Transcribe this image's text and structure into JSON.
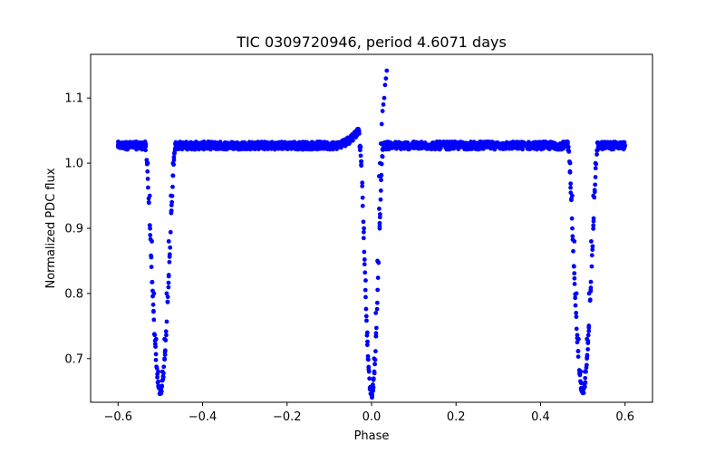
{
  "colors": {
    "background": "#ffffff",
    "axes": "#000000",
    "series": "#0000ff"
  },
  "chart_data": {
    "type": "scatter",
    "title": "TIC 0309720946, period 4.6071 days",
    "xlabel": "Phase",
    "ylabel": "Normalized PDC flux",
    "xlim": [
      -0.665,
      0.665
    ],
    "ylim": [
      0.633,
      1.167
    ],
    "grid": false,
    "legend": "none",
    "xticks": [
      -0.6,
      -0.4,
      -0.2,
      0.0,
      0.2,
      0.4,
      0.6
    ],
    "xtick_labels": [
      "−0.6",
      "−0.4",
      "−0.2",
      "0.0",
      "0.2",
      "0.4",
      "0.6"
    ],
    "yticks": [
      0.7,
      0.8,
      0.9,
      1.0,
      1.1
    ],
    "ytick_labels": [
      "0.7",
      "0.8",
      "0.9",
      "1.0",
      "1.1"
    ],
    "series": [
      {
        "color": "#0000ff",
        "marker": "circle",
        "baseline_flux": 1.027,
        "baseline_scatter": 0.006,
        "eclipses": [
          {
            "center_phase": -0.5,
            "min_flux": 0.65,
            "half_width": 0.035
          },
          {
            "center_phase": 0.0,
            "min_flux": 0.645,
            "half_width": 0.027
          },
          {
            "center_phase": 0.5,
            "min_flux": 0.65,
            "half_width": 0.035
          }
        ],
        "points": [
          [
            -0.6,
            1.027
          ],
          [
            -0.55,
            1.03
          ],
          [
            -0.54,
            1.03
          ],
          [
            -0.535,
            1.02
          ],
          [
            -0.53,
            1.0
          ],
          [
            -0.525,
            0.95
          ],
          [
            -0.52,
            0.88
          ],
          [
            -0.515,
            0.8
          ],
          [
            -0.51,
            0.73
          ],
          [
            -0.505,
            0.68
          ],
          [
            -0.5,
            0.65
          ],
          [
            -0.495,
            0.68
          ],
          [
            -0.49,
            0.73
          ],
          [
            -0.485,
            0.8
          ],
          [
            -0.48,
            0.88
          ],
          [
            -0.475,
            0.95
          ],
          [
            -0.47,
            1.0
          ],
          [
            -0.465,
            1.02
          ],
          [
            -0.46,
            1.03
          ],
          [
            -0.4,
            1.027
          ],
          [
            -0.3,
            1.027
          ],
          [
            -0.2,
            1.027
          ],
          [
            -0.1,
            1.027
          ],
          [
            -0.08,
            1.03
          ],
          [
            -0.06,
            1.035
          ],
          [
            -0.045,
            1.04
          ],
          [
            -0.035,
            1.045
          ],
          [
            -0.03,
            1.05
          ],
          [
            -0.027,
            1.02
          ],
          [
            -0.022,
            0.97
          ],
          [
            -0.018,
            0.9
          ],
          [
            -0.014,
            0.82
          ],
          [
            -0.01,
            0.74
          ],
          [
            -0.006,
            0.68
          ],
          [
            -0.003,
            0.655
          ],
          [
            0.0,
            0.645
          ],
          [
            0.003,
            0.66
          ],
          [
            0.006,
            0.7
          ],
          [
            0.01,
            0.77
          ],
          [
            0.014,
            0.85
          ],
          [
            0.018,
            0.93
          ],
          [
            0.022,
            0.98
          ],
          [
            0.026,
            1.01
          ],
          [
            0.03,
            1.027
          ],
          [
            0.1,
            1.027
          ],
          [
            0.2,
            1.027
          ],
          [
            0.3,
            1.027
          ],
          [
            0.4,
            1.027
          ],
          [
            0.46,
            1.03
          ],
          [
            0.465,
            1.02
          ],
          [
            0.47,
            1.0
          ],
          [
            0.475,
            0.95
          ],
          [
            0.48,
            0.88
          ],
          [
            0.485,
            0.8
          ],
          [
            0.49,
            0.73
          ],
          [
            0.495,
            0.68
          ],
          [
            0.5,
            0.65
          ],
          [
            0.505,
            0.68
          ],
          [
            0.51,
            0.73
          ],
          [
            0.515,
            0.8
          ],
          [
            0.52,
            0.88
          ],
          [
            0.525,
            0.95
          ],
          [
            0.53,
            1.0
          ],
          [
            0.535,
            1.02
          ],
          [
            0.54,
            1.03
          ],
          [
            0.6,
            1.027
          ]
        ],
        "outliers": [
          [
            0.018,
            0.98
          ],
          [
            0.02,
            1.0
          ],
          [
            0.022,
            1.03
          ],
          [
            0.024,
            1.06
          ],
          [
            0.026,
            1.08
          ],
          [
            0.028,
            1.09
          ],
          [
            0.03,
            1.1
          ],
          [
            0.032,
            1.12
          ],
          [
            0.034,
            1.13
          ],
          [
            0.036,
            1.142
          ]
        ]
      }
    ]
  }
}
